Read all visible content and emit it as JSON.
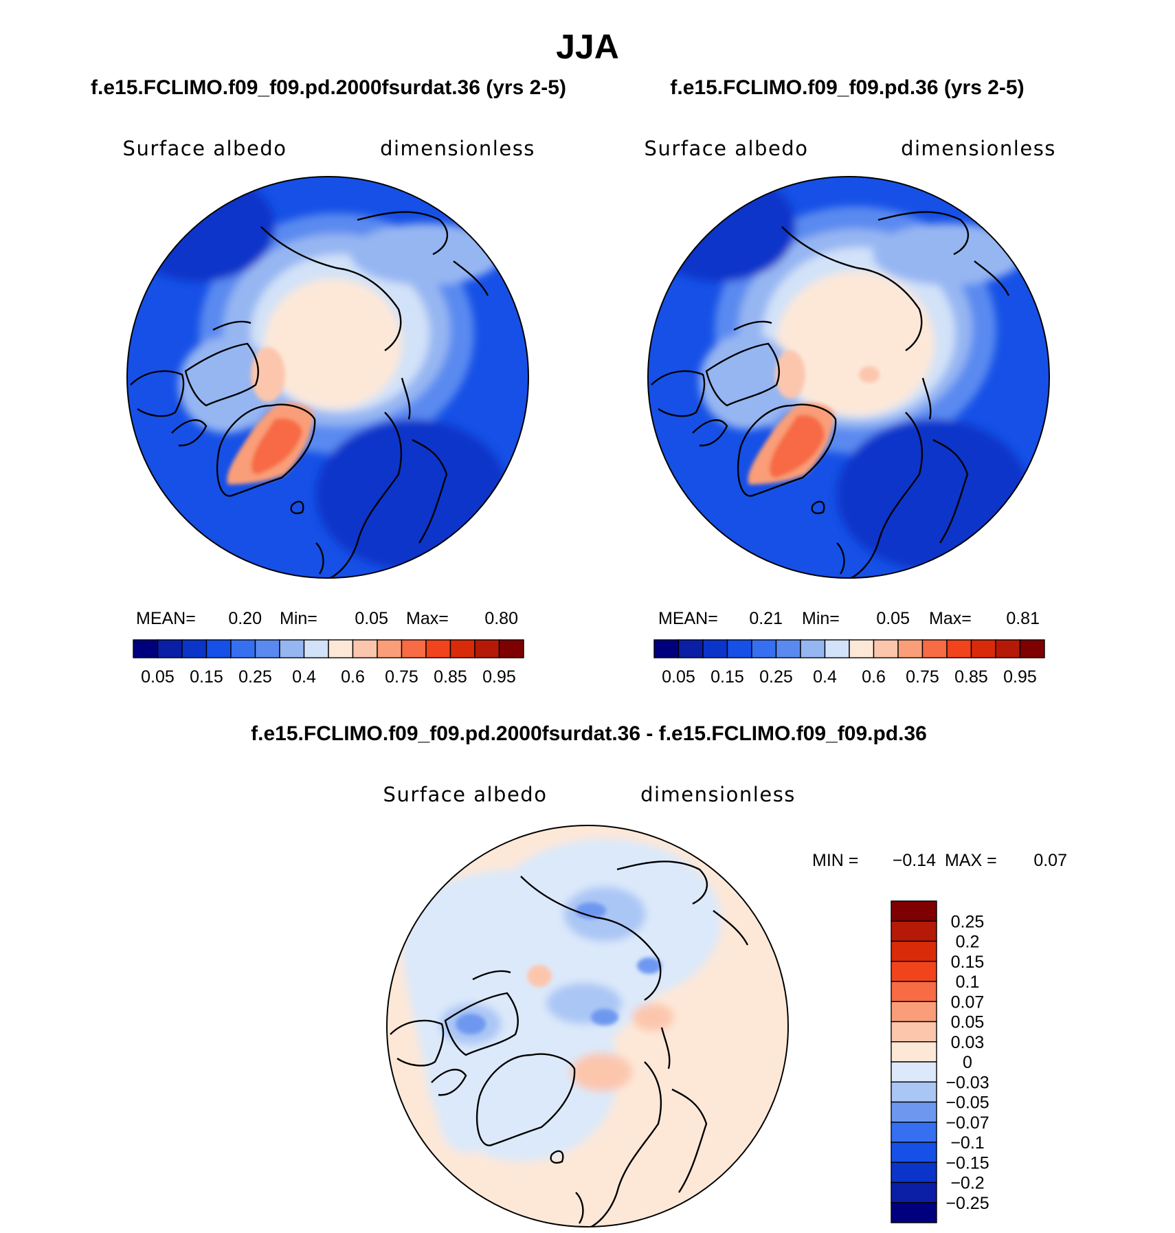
{
  "season_title": "JJA",
  "panels": [
    {
      "id": "test",
      "title": "f.e15.FCLIMO.f09_f09.pd.2000fsurdat.36 (yrs 2-5)",
      "variable": "Surface albedo",
      "units": "dimensionless",
      "stats": {
        "mean_label": "MEAN=",
        "mean": "0.20",
        "min_label": "Min=",
        "min": "0.05",
        "max_label": "Max=",
        "max": "0.80"
      }
    },
    {
      "id": "control",
      "title": "f.e15.FCLIMO.f09_f09.pd.36 (yrs 2-5)",
      "variable": "Surface albedo",
      "units": "dimensionless",
      "stats": {
        "mean_label": "MEAN=",
        "mean": "0.21",
        "min_label": "Min=",
        "min": "0.05",
        "max_label": "Max=",
        "max": "0.81"
      }
    }
  ],
  "diff_panel": {
    "title": "f.e15.FCLIMO.f09_f09.pd.2000fsurdat.36 - f.e15.FCLIMO.f09_f09.pd.36",
    "variable": "Surface albedo",
    "units": "dimensionless",
    "stats": {
      "min_label": "MIN =",
      "min": "−0.14",
      "max_label": "MAX =",
      "max": "0.07"
    }
  },
  "chart_data": [
    {
      "type": "heatmap",
      "projection": "north-polar-stereographic",
      "title": "f.e15.FCLIMO.f09_f09.pd.2000fsurdat.36 (yrs 2-5)",
      "field": "Surface albedo",
      "units": "dimensionless",
      "mean": 0.2,
      "min": 0.05,
      "max": 0.8,
      "colorbar": {
        "orientation": "horizontal",
        "levels": [
          0.05,
          0.1,
          0.15,
          0.2,
          0.25,
          0.3,
          0.4,
          0.5,
          0.6,
          0.7,
          0.75,
          0.8,
          0.85,
          0.9,
          0.95
        ],
        "tick_labels": [
          "0.05",
          "0.15",
          "0.25",
          "0.4",
          "0.6",
          "0.75",
          "0.85",
          "0.95"
        ],
        "colors": [
          "#00007f",
          "#0a1ea6",
          "#0b34c9",
          "#1650e6",
          "#3670f0",
          "#5a8af0",
          "#96b6f2",
          "#d2e2f8",
          "#fde8d8",
          "#fcc6ad",
          "#f99e78",
          "#f76b45",
          "#f2441c",
          "#d92b0a",
          "#b51a08",
          "#7f0000"
        ]
      }
    },
    {
      "type": "heatmap",
      "projection": "north-polar-stereographic",
      "title": "f.e15.FCLIMO.f09_f09.pd.36 (yrs 2-5)",
      "field": "Surface albedo",
      "units": "dimensionless",
      "mean": 0.21,
      "min": 0.05,
      "max": 0.81,
      "colorbar": {
        "orientation": "horizontal",
        "levels": [
          0.05,
          0.1,
          0.15,
          0.2,
          0.25,
          0.3,
          0.4,
          0.5,
          0.6,
          0.7,
          0.75,
          0.8,
          0.85,
          0.9,
          0.95
        ],
        "tick_labels": [
          "0.05",
          "0.15",
          "0.25",
          "0.4",
          "0.6",
          "0.75",
          "0.85",
          "0.95"
        ],
        "colors": [
          "#00007f",
          "#0a1ea6",
          "#0b34c9",
          "#1650e6",
          "#3670f0",
          "#5a8af0",
          "#96b6f2",
          "#d2e2f8",
          "#fde8d8",
          "#fcc6ad",
          "#f99e78",
          "#f76b45",
          "#f2441c",
          "#d92b0a",
          "#b51a08",
          "#7f0000"
        ]
      }
    },
    {
      "type": "heatmap",
      "projection": "north-polar-stereographic",
      "title": "f.e15.FCLIMO.f09_f09.pd.2000fsurdat.36 - f.e15.FCLIMO.f09_f09.pd.36",
      "field": "Surface albedo",
      "units": "dimensionless",
      "min": -0.14,
      "max": 0.07,
      "colorbar": {
        "orientation": "vertical",
        "levels": [
          -0.25,
          -0.2,
          -0.15,
          -0.1,
          -0.07,
          -0.05,
          -0.03,
          0,
          0.03,
          0.05,
          0.07,
          0.1,
          0.15,
          0.2,
          0.25
        ],
        "tick_labels": [
          "0.25",
          "0.2",
          "0.15",
          "0.1",
          "0.07",
          "0.05",
          "0.03",
          "0",
          "−0.03",
          "−0.05",
          "−0.07",
          "−0.1",
          "−0.15",
          "−0.2",
          "−0.25"
        ],
        "colors": [
          "#00007f",
          "#0a1ea6",
          "#0b34c9",
          "#1650e6",
          "#3670f0",
          "#6e98f0",
          "#aac6f5",
          "#dce9fa",
          "#fde8d8",
          "#fcc6ad",
          "#f99e78",
          "#f76b45",
          "#f2441c",
          "#d92b0a",
          "#b51a08",
          "#7f0000"
        ]
      }
    }
  ]
}
